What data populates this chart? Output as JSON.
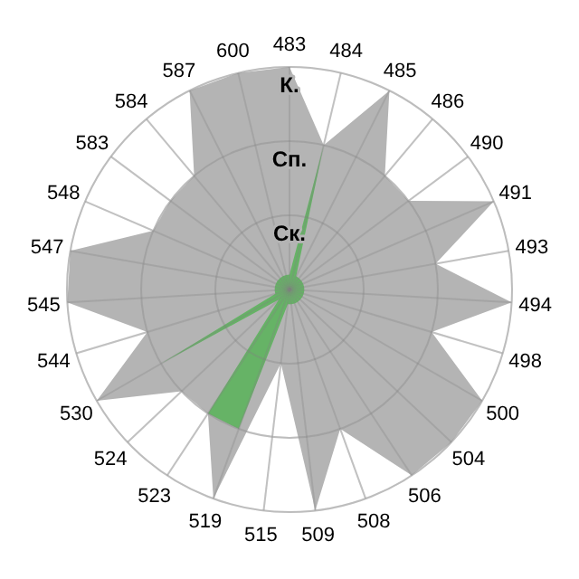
{
  "chart_data": {
    "type": "radar",
    "categories": [
      "483",
      "484",
      "485",
      "486",
      "490",
      "491",
      "493",
      "494",
      "498",
      "500",
      "504",
      "506",
      "508",
      "509",
      "515",
      "519",
      "523",
      "524",
      "530",
      "544",
      "545",
      "547",
      "548",
      "583",
      "584",
      "587",
      "600"
    ],
    "ylim": [
      0,
      3
    ],
    "yticks": [
      {
        "value": 1,
        "label": "Ск."
      },
      {
        "value": 2,
        "label": "Сп."
      },
      {
        "value": 3,
        "label": "К."
      }
    ],
    "grid": true,
    "series": [
      {
        "color": "#b4b4b4",
        "values": [
          3,
          2,
          3,
          2,
          2,
          3,
          2,
          3,
          2,
          3,
          3,
          3,
          2,
          3,
          1,
          3,
          2,
          2,
          3,
          2,
          3,
          3,
          2,
          2,
          2,
          3,
          3
        ]
      },
      {
        "color": "#66b366",
        "values": [
          0.2,
          2,
          0.2,
          0.2,
          0.2,
          0.2,
          0.2,
          0.2,
          0.2,
          0.2,
          0.2,
          0.2,
          0.2,
          0.2,
          0.2,
          2,
          2,
          0.2,
          2,
          0.2,
          0.2,
          0.2,
          0.2,
          0.2,
          0.2,
          0.2,
          0.2
        ]
      }
    ]
  }
}
